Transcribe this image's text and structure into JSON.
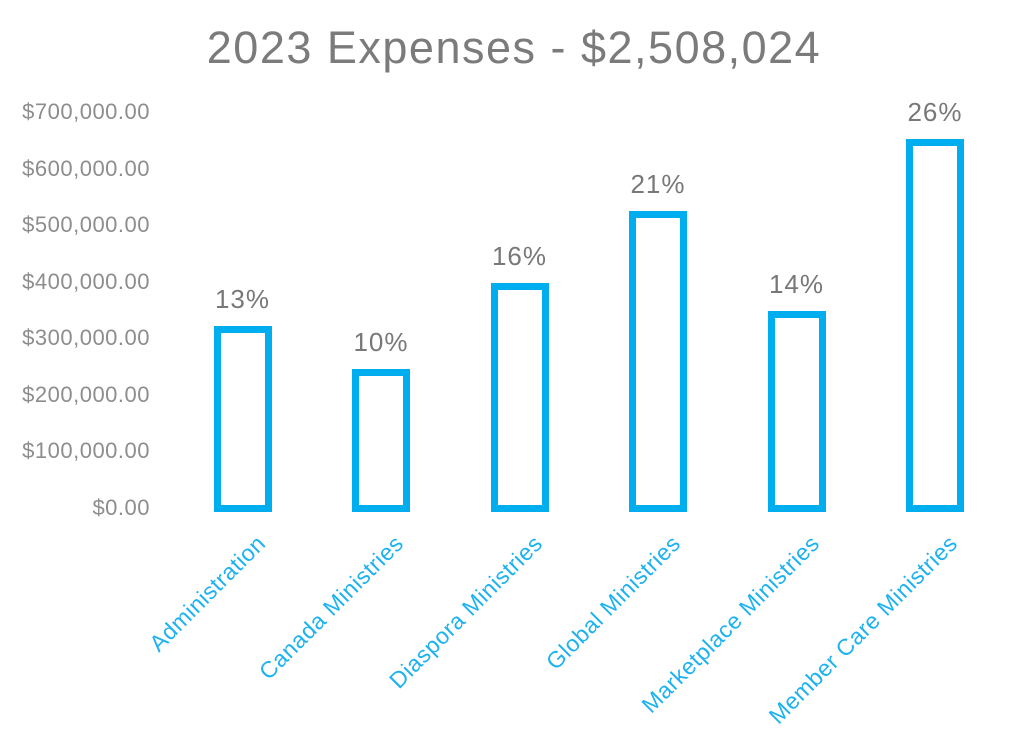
{
  "chart": {
    "title": "2023 Expenses - $2,508,024",
    "total_label": "$2,508,024",
    "year": "2023"
  },
  "chart_data": {
    "type": "bar",
    "title": "2023 Expenses - $2,508,024",
    "total_usd": 2508024,
    "categories": [
      "Administration",
      "Canada Ministries",
      "Diaspora Ministries",
      "Global Ministries",
      "Marketplace Ministries",
      "Member Care Ministries"
    ],
    "series": [
      {
        "name": "2023 Expenses",
        "percent_labels": [
          "13%",
          "10%",
          "16%",
          "21%",
          "14%",
          "26%"
        ],
        "percents": [
          13,
          10,
          16,
          21,
          14,
          26
        ],
        "values_usd_est": [
          326043,
          250802,
          401284,
          526685,
          351123,
          652086
        ]
      }
    ],
    "xlabel": "",
    "ylabel": "",
    "ylim": [
      0,
      700000
    ],
    "ytick_step": 100000,
    "ytick_labels_top_to_bottom": [
      "$700,000.00",
      "$600,000.00",
      "$500,000.00",
      "$400,000.00",
      "$300,000.00",
      "$200,000.00",
      "$100,000.00",
      "$0.00"
    ],
    "grid": false,
    "legend": false,
    "colors": {
      "bar_fill": "#ffffff",
      "bar_border": "#00aeef",
      "category_label": "#1db2f0",
      "title_text": "#7b7b7b",
      "tick_text": "#8d8d8d",
      "percent_text": "#787878",
      "background": "#ffffff"
    }
  }
}
